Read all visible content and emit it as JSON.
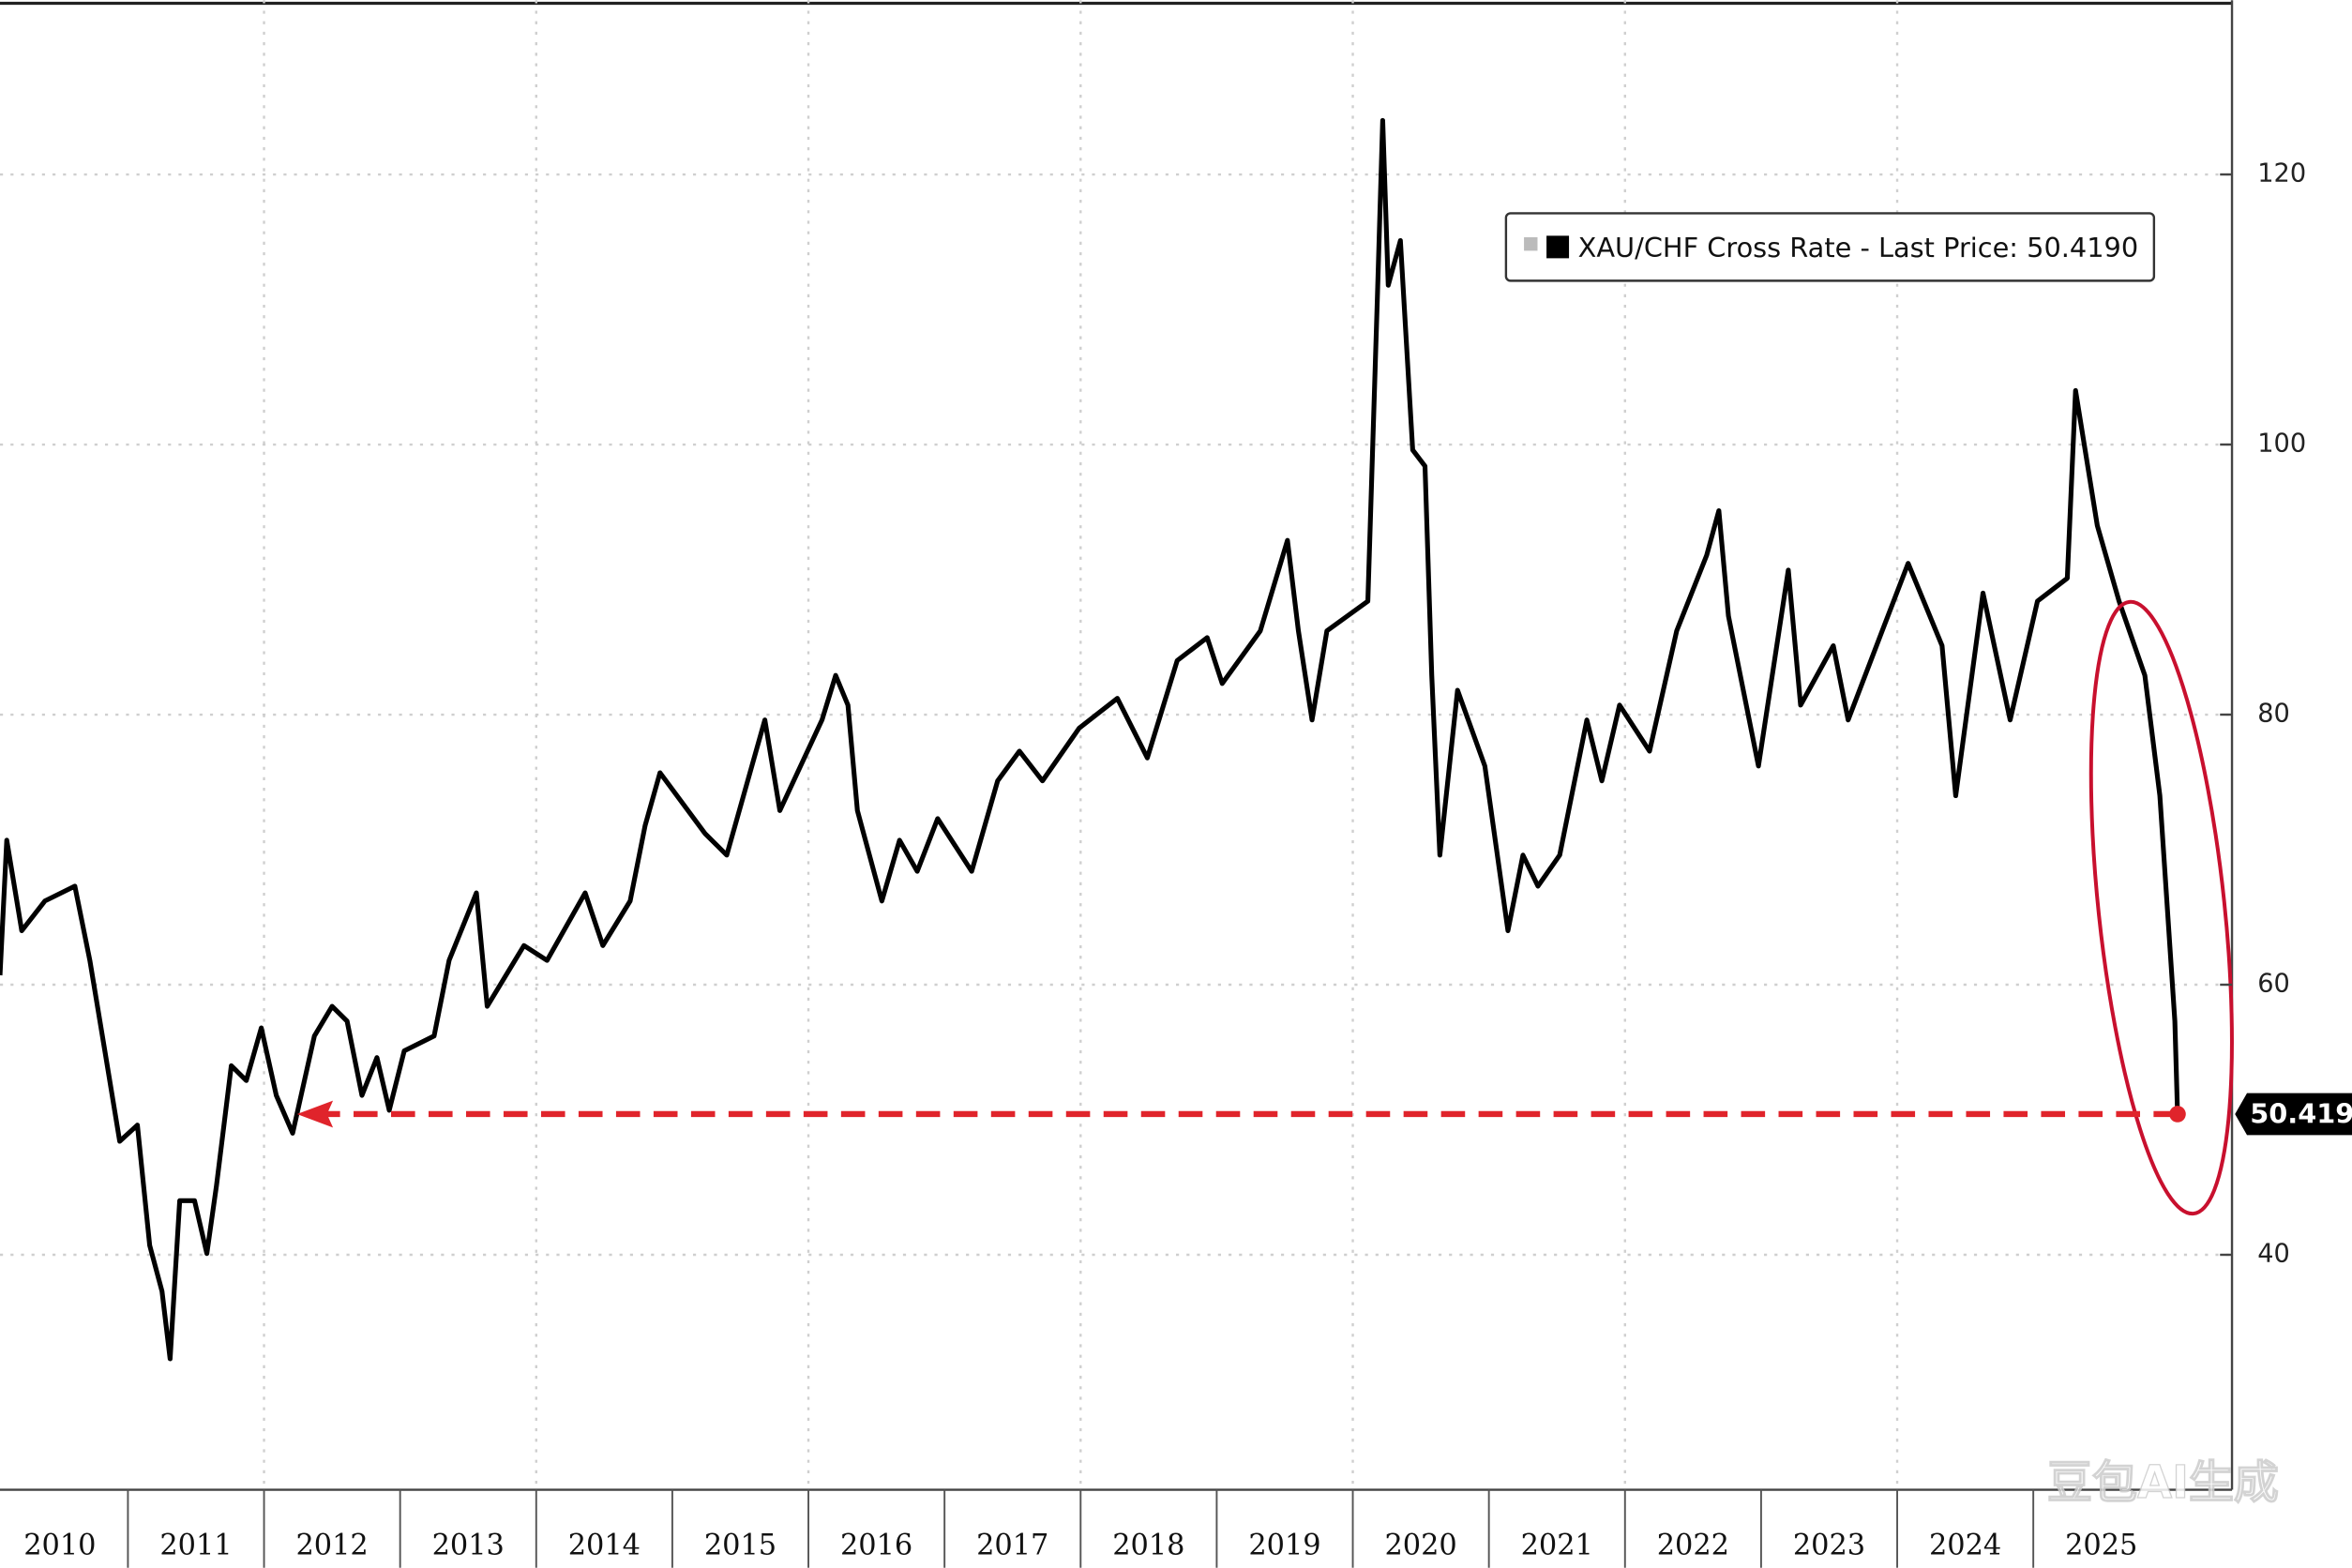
{
  "chart_data": {
    "type": "line",
    "series": [
      {
        "name": "XAU/CHF Cross Rate - Last Price: 50.4190",
        "color": "#000000",
        "x": [
          2010.06,
          2010.11,
          2010.22,
          2010.39,
          2010.61,
          2010.72,
          2010.83,
          2010.94,
          2011.07,
          2011.16,
          2011.25,
          2011.31,
          2011.38,
          2011.49,
          2011.58,
          2011.65,
          2011.76,
          2011.87,
          2011.98,
          2012.09,
          2012.21,
          2012.37,
          2012.5,
          2012.61,
          2012.72,
          2012.83,
          2012.92,
          2013.03,
          2013.25,
          2013.36,
          2013.56,
          2013.64,
          2013.91,
          2014.08,
          2014.36,
          2014.49,
          2014.69,
          2014.8,
          2014.91,
          2015.24,
          2015.4,
          2015.68,
          2015.79,
          2016.1,
          2016.2,
          2016.29,
          2016.36,
          2016.54,
          2016.67,
          2016.8,
          2016.95,
          2017.2,
          2017.39,
          2017.55,
          2017.72,
          2017.99,
          2018.27,
          2018.49,
          2018.71,
          2018.93,
          2019.04,
          2019.32,
          2019.52,
          2019.6,
          2019.7,
          2019.81,
          2020.11,
          2020.18,
          2020.22,
          2020.26,
          2020.35,
          2020.44,
          2020.53,
          2020.58,
          2020.64,
          2020.77,
          2020.97,
          2021.14,
          2021.25,
          2021.36,
          2021.52,
          2021.72,
          2021.83,
          2021.96,
          2022.18,
          2022.38,
          2022.6,
          2022.69,
          2022.76,
          2022.98,
          2023.2,
          2023.29,
          2023.53,
          2023.64,
          2023.89,
          2024.08,
          2024.33,
          2024.43,
          2024.63,
          2024.83,
          2025.03,
          2025.25,
          2025.31,
          2025.47,
          2025.63,
          2025.82,
          2025.93,
          2026.04,
          2026.06
        ],
        "values": [
          60.7,
          70.7,
          64.0,
          66.2,
          67.3,
          61.8,
          55.1,
          48.4,
          49.6,
          40.7,
          37.3,
          32.3,
          44.0,
          44.0,
          40.1,
          45.1,
          54.0,
          52.9,
          56.8,
          51.8,
          49.0,
          56.2,
          58.4,
          57.3,
          51.8,
          54.6,
          50.7,
          55.1,
          56.2,
          61.8,
          66.8,
          58.4,
          62.9,
          61.8,
          66.8,
          62.9,
          66.2,
          71.8,
          75.7,
          71.2,
          69.6,
          79.6,
          72.9,
          79.6,
          82.9,
          80.7,
          72.9,
          66.2,
          70.7,
          68.4,
          72.3,
          68.4,
          75.1,
          77.3,
          75.1,
          79.0,
          81.2,
          76.8,
          84.0,
          85.7,
          82.3,
          86.2,
          92.9,
          86.2,
          79.6,
          86.2,
          88.4,
          110.7,
          124.0,
          111.8,
          115.1,
          99.6,
          98.4,
          82.9,
          69.6,
          81.8,
          76.2,
          64.0,
          69.6,
          67.3,
          69.6,
          79.6,
          75.1,
          80.7,
          77.3,
          86.2,
          91.8,
          95.1,
          87.3,
          76.2,
          90.7,
          80.7,
          85.1,
          79.6,
          86.2,
          91.2,
          85.1,
          74.0,
          89.0,
          79.6,
          88.4,
          90.1,
          104.0,
          94.0,
          88.4,
          82.9,
          74.0,
          57.3,
          50.419
        ]
      }
    ],
    "last_label": "50.4190",
    "xlim": [
      2010.06,
      2026.46
    ],
    "xticks": [
      2010,
      2011,
      2012,
      2013,
      2014,
      2015,
      2016,
      2017,
      2018,
      2019,
      2020,
      2021,
      2022,
      2023,
      2024,
      2025
    ],
    "ylim": [
      22.6,
      132.9
    ],
    "yticks": [
      40,
      60,
      80,
      100,
      120
    ],
    "grid": true,
    "legend": "upper right",
    "watermark": "豆包AI生成"
  }
}
